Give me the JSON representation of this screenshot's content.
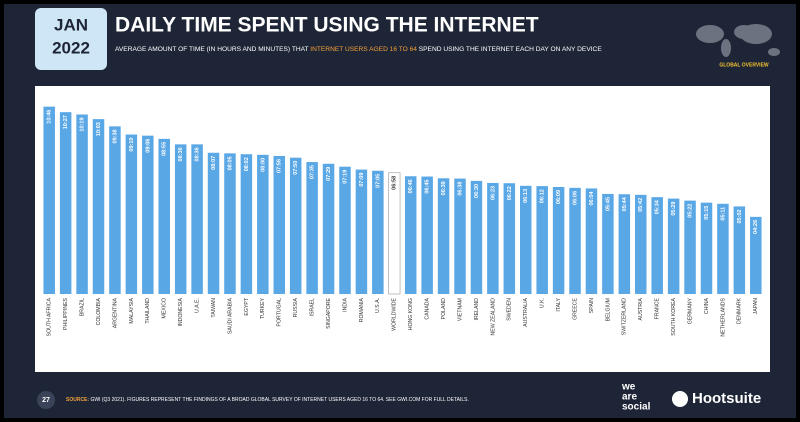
{
  "header": {
    "date_line1": "JAN",
    "date_line2": "2022",
    "subtitle_part1": "AVERAGE AMOUNT OF TIME (IN HOURS AND MINUTES) THAT",
    "subtitle_highlight": "INTERNET USERS AGED 16 TO 64",
    "subtitle_part2": "SPEND USING THE INTERNET EACH DAY ON ANY DEVICE",
    "badge": "GLOBAL OVERVIEW"
  },
  "chart_data": {
    "type": "bar",
    "title": "DAILY TIME SPENT USING THE INTERNET",
    "categories": [
      "SOUTH AFRICA",
      "PHILIPPINES",
      "BRAZIL",
      "COLOMBIA",
      "ARGENTINA",
      "MALAYSIA",
      "THAILAND",
      "MEXICO",
      "INDONESIA",
      "U.A.E.",
      "TAIWAN",
      "SAUDI ARABIA",
      "EGYPT",
      "TURKEY",
      "PORTUGAL",
      "RUSSIA",
      "ISRAEL",
      "SINGAPORE",
      "INDIA",
      "ROMANIA",
      "U.S.A.",
      "WORLDWIDE",
      "HONG KONG",
      "CANADA",
      "POLAND",
      "VIETNAM",
      "IRELAND",
      "NEW ZEALAND",
      "SWEDEN",
      "AUSTRALIA",
      "U.K.",
      "ITALY",
      "GREECE",
      "SPAIN",
      "BELGIUM",
      "SWITZERLAND",
      "AUSTRIA",
      "FRANCE",
      "SOUTH KOREA",
      "GERMANY",
      "CHINA",
      "NETHERLANDS",
      "DENMARK",
      "JAPAN"
    ],
    "values": [
      646,
      627,
      619,
      603,
      578,
      550,
      546,
      535,
      516,
      516,
      487,
      485,
      482,
      480,
      476,
      470,
      455,
      449,
      439,
      429,
      425,
      418,
      406,
      405,
      399,
      398,
      390,
      383,
      382,
      373,
      372,
      369,
      366,
      364,
      345,
      344,
      342,
      334,
      329,
      322,
      315,
      311,
      302,
      266
    ],
    "value_labels": [
      "10:46",
      "10:27",
      "10:19",
      "10:03",
      "09:38",
      "09:10",
      "09:06",
      "08:55",
      "08:36",
      "08:36",
      "08:07",
      "08:05",
      "08:02",
      "08:00",
      "07:56",
      "07:50",
      "07:35",
      "07:29",
      "07:19",
      "07:09",
      "07:05",
      "06:58",
      "06:46",
      "06:45",
      "06:39",
      "06:38",
      "06:30",
      "06:23",
      "06:22",
      "06:13",
      "06:12",
      "06:09",
      "06:06",
      "06:04",
      "05:45",
      "05:44",
      "05:42",
      "05:34",
      "05:29",
      "05:22",
      "05:15",
      "05:11",
      "05:02",
      "04:26"
    ],
    "colors": [
      "#5aa7e6",
      "#5aa7e6",
      "#5aa7e6",
      "#5aa7e6",
      "#5aa7e6",
      "#5aa7e6",
      "#5aa7e6",
      "#5aa7e6",
      "#5aa7e6",
      "#5aa7e6",
      "#5aa7e6",
      "#5aa7e6",
      "#5aa7e6",
      "#5aa7e6",
      "#5aa7e6",
      "#5aa7e6",
      "#5aa7e6",
      "#5aa7e6",
      "#5aa7e6",
      "#5aa7e6",
      "#5aa7e6",
      "#ffffff",
      "#5aa7e6",
      "#5aa7e6",
      "#5aa7e6",
      "#5aa7e6",
      "#5aa7e6",
      "#5aa7e6",
      "#5aa7e6",
      "#5aa7e6",
      "#5aa7e6",
      "#5aa7e6",
      "#5aa7e6",
      "#5aa7e6",
      "#5aa7e6",
      "#5aa7e6",
      "#5aa7e6",
      "#5aa7e6",
      "#5aa7e6",
      "#5aa7e6",
      "#5aa7e6",
      "#5aa7e6",
      "#5aa7e6",
      "#5aa7e6"
    ]
  },
  "footer": {
    "page": "27",
    "source_label": "SOURCE:",
    "source_text": "GWI (Q3 2021). FIGURES REPRESENT THE FINDINGS OF A BROAD GLOBAL SURVEY OF INTERNET USERS AGED 16 TO 64. SEE GWI.COM FOR FULL DETAILS.",
    "logo1_line1": "we",
    "logo1_line2": "are",
    "logo1_line3": "social",
    "logo2": "Hootsuite"
  }
}
